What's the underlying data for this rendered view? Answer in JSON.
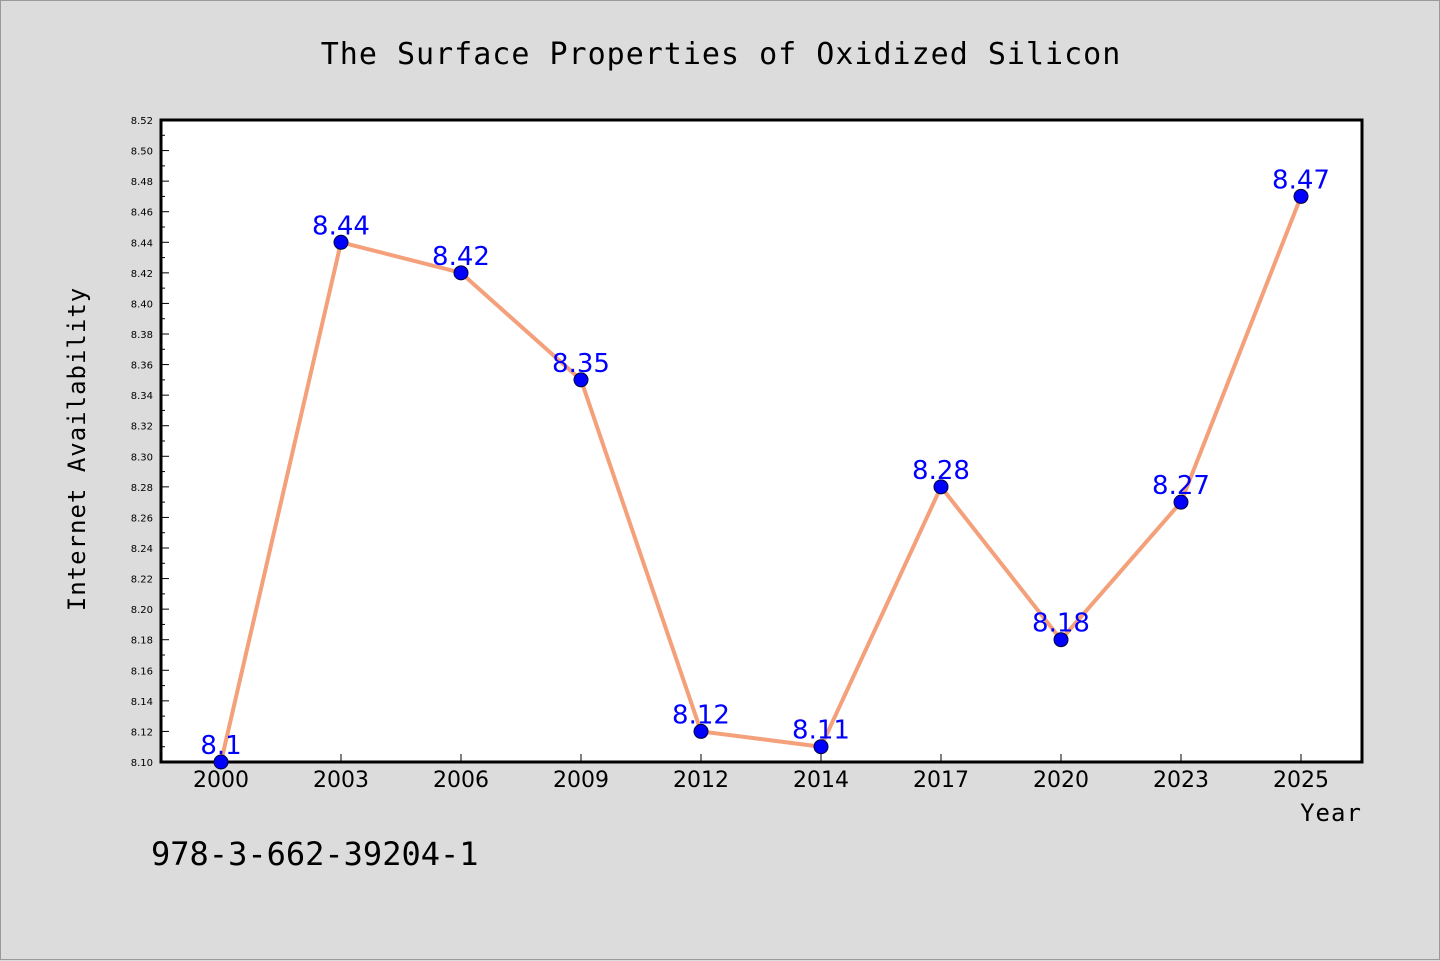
{
  "chart_data": {
    "type": "line",
    "title": "The Surface Properties of Oxidized Silicon",
    "xlabel": "Year",
    "ylabel": "Internet Availability",
    "categories": [
      "2000",
      "2003",
      "2006",
      "2009",
      "2012",
      "2014",
      "2017",
      "2020",
      "2023",
      "2025"
    ],
    "series": [
      {
        "values": [
          8.1,
          8.44,
          8.42,
          8.35,
          8.12,
          8.11,
          8.28,
          8.18,
          8.27,
          8.47
        ],
        "data_labels": [
          "8.1",
          "8.44",
          "8.42",
          "8.35",
          "8.12",
          "8.11",
          "8.28",
          "8.18",
          "8.27",
          "8.47"
        ],
        "line_color": "#f4a07a",
        "marker_color": "#0000ff"
      }
    ],
    "ylim": [
      8.1,
      8.52
    ],
    "yticks": [
      "8.10",
      "8.12",
      "8.14",
      "8.16",
      "8.18",
      "8.20",
      "8.22",
      "8.24",
      "8.26",
      "8.28",
      "8.30",
      "8.32",
      "8.34",
      "8.36",
      "8.38",
      "8.40",
      "8.42",
      "8.44",
      "8.46",
      "8.48",
      "8.50",
      "8.52"
    ],
    "grid": false,
    "legend": "none"
  },
  "footnote": "978-3-662-39204-1",
  "colors": {
    "background": "#dcdcdc",
    "plot_area": "#ffffff",
    "label": "#0000ff"
  }
}
